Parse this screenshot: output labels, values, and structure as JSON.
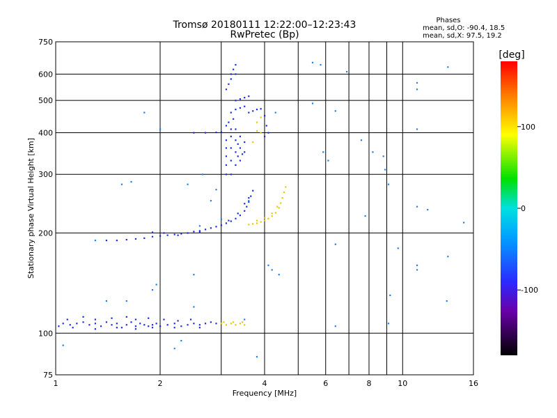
{
  "chart_data": {
    "type": "scatter",
    "title": "Tromsø 20180111 12:22:00–12:23:43",
    "subtitle": "RwPretec (Bp)",
    "xlabel": "Frequency [MHz]",
    "ylabel": "Stationary phase Virtual Height [km]",
    "x_scale": "log",
    "y_scale": "log",
    "xlim": [
      1,
      16
    ],
    "ylim": [
      75,
      750
    ],
    "x_ticks": [
      1,
      2,
      4,
      6,
      8,
      10,
      16
    ],
    "x_grid": [
      2,
      3,
      4,
      5,
      6,
      7,
      8,
      9,
      10
    ],
    "y_ticks": [
      75,
      100,
      200,
      300,
      400,
      500,
      600,
      750
    ],
    "grid": true,
    "phases_box": {
      "title": "Phases",
      "line_o": "mean, sd,O: -90.4, 18.5",
      "line_x": "mean, sd,X: 97.5, 19.2"
    },
    "colorbar": {
      "label": "[deg]",
      "range": [
        -180,
        180
      ],
      "ticks": [
        100,
        0,
        -100
      ]
    },
    "series": [
      {
        "style": "O-mode E layer",
        "points": [
          [
            1.02,
            105
          ],
          [
            1.05,
            107
          ],
          [
            1.1,
            106
          ],
          [
            1.15,
            107
          ],
          [
            1.2,
            108
          ],
          [
            1.25,
            106
          ],
          [
            1.3,
            107
          ],
          [
            1.35,
            105
          ],
          [
            1.4,
            108
          ],
          [
            1.45,
            106
          ],
          [
            1.5,
            107
          ],
          [
            1.55,
            104
          ],
          [
            1.6,
            106
          ],
          [
            1.65,
            108
          ],
          [
            1.7,
            105
          ],
          [
            1.75,
            107
          ],
          [
            1.8,
            106
          ],
          [
            1.85,
            105
          ],
          [
            1.9,
            106
          ],
          [
            1.95,
            107
          ],
          [
            2.0,
            105
          ],
          [
            2.1,
            106
          ],
          [
            2.2,
            107
          ],
          [
            2.3,
            105
          ],
          [
            2.4,
            106
          ],
          [
            2.5,
            107
          ],
          [
            2.6,
            106
          ],
          [
            2.7,
            107
          ],
          [
            2.8,
            108
          ],
          [
            2.9,
            107
          ],
          [
            1.08,
            110
          ],
          [
            1.2,
            112
          ],
          [
            1.3,
            110
          ],
          [
            1.45,
            111
          ],
          [
            1.6,
            112
          ],
          [
            1.7,
            110
          ],
          [
            1.85,
            111
          ],
          [
            2.05,
            110
          ],
          [
            2.25,
            109
          ],
          [
            2.45,
            110
          ],
          [
            1.12,
            104
          ],
          [
            1.3,
            103
          ],
          [
            1.5,
            104
          ],
          [
            1.7,
            103
          ],
          [
            1.9,
            104
          ],
          [
            2.2,
            104
          ],
          [
            2.6,
            104
          ]
        ],
        "phase": -100
      },
      {
        "style": "X-mode E layer",
        "points": [
          [
            3.0,
            107
          ],
          [
            3.1,
            106
          ],
          [
            3.2,
            107
          ],
          [
            3.3,
            106
          ],
          [
            3.4,
            107
          ],
          [
            3.5,
            106
          ],
          [
            3.05,
            108
          ],
          [
            3.25,
            108
          ],
          [
            3.45,
            108
          ]
        ],
        "phase": 95
      },
      {
        "style": "O-mode F1 trace",
        "points": [
          [
            1.4,
            190
          ],
          [
            1.5,
            190
          ],
          [
            1.6,
            191
          ],
          [
            1.7,
            192
          ],
          [
            1.8,
            193
          ],
          [
            1.9,
            195
          ],
          [
            2.0,
            196
          ],
          [
            2.1,
            197
          ],
          [
            2.2,
            198
          ],
          [
            2.3,
            199
          ],
          [
            2.4,
            200
          ],
          [
            2.5,
            202
          ],
          [
            2.6,
            203
          ],
          [
            2.7,
            205
          ],
          [
            2.8,
            207
          ],
          [
            2.9,
            209
          ],
          [
            3.0,
            211
          ],
          [
            3.1,
            214
          ],
          [
            3.2,
            217
          ],
          [
            3.3,
            221
          ],
          [
            3.4,
            226
          ],
          [
            3.5,
            233
          ],
          [
            3.55,
            240
          ],
          [
            3.6,
            248
          ],
          [
            3.65,
            258
          ],
          [
            3.7,
            268
          ],
          [
            1.9,
            201
          ],
          [
            2.05,
            200
          ],
          [
            2.25,
            197
          ],
          [
            2.6,
            201
          ],
          [
            3.15,
            218
          ],
          [
            3.35,
            229
          ],
          [
            3.5,
            245
          ],
          [
            3.6,
            255
          ]
        ],
        "phase": -100
      },
      {
        "style": "X-mode F1 trace",
        "points": [
          [
            3.6,
            212
          ],
          [
            3.7,
            213
          ],
          [
            3.8,
            214
          ],
          [
            3.9,
            216
          ],
          [
            4.0,
            218
          ],
          [
            4.1,
            221
          ],
          [
            4.2,
            225
          ],
          [
            4.3,
            230
          ],
          [
            4.4,
            238
          ],
          [
            4.45,
            246
          ],
          [
            4.5,
            255
          ],
          [
            4.55,
            265
          ],
          [
            4.6,
            275
          ],
          [
            3.8,
            218
          ],
          [
            4.0,
            222
          ],
          [
            4.2,
            229
          ],
          [
            4.35,
            240
          ]
        ],
        "phase": 95
      },
      {
        "style": "O-mode F2 trace",
        "points": [
          [
            2.5,
            400
          ],
          [
            2.7,
            400
          ],
          [
            2.9,
            401
          ],
          [
            3.0,
            402
          ],
          [
            3.1,
            300
          ],
          [
            3.1,
            320
          ],
          [
            3.1,
            340
          ],
          [
            3.1,
            360
          ],
          [
            3.1,
            380
          ],
          [
            3.1,
            420
          ],
          [
            3.15,
            430
          ],
          [
            3.2,
            300
          ],
          [
            3.2,
            330
          ],
          [
            3.2,
            360
          ],
          [
            3.2,
            390
          ],
          [
            3.2,
            410
          ],
          [
            3.25,
            440
          ],
          [
            3.3,
            320
          ],
          [
            3.3,
            350
          ],
          [
            3.3,
            380
          ],
          [
            3.3,
            410
          ],
          [
            3.35,
            340
          ],
          [
            3.35,
            370
          ],
          [
            3.4,
            330
          ],
          [
            3.4,
            360
          ],
          [
            3.4,
            390
          ],
          [
            3.45,
            345
          ],
          [
            3.5,
            350
          ],
          [
            3.5,
            375
          ],
          [
            3.2,
            460
          ],
          [
            3.3,
            470
          ],
          [
            3.4,
            475
          ],
          [
            3.5,
            480
          ],
          [
            3.6,
            460
          ],
          [
            3.7,
            465
          ],
          [
            3.8,
            470
          ],
          [
            3.9,
            472
          ],
          [
            3.3,
            500
          ],
          [
            3.4,
            505
          ],
          [
            3.5,
            510
          ],
          [
            3.6,
            515
          ],
          [
            3.1,
            540
          ],
          [
            3.2,
            580
          ],
          [
            3.2,
            600
          ],
          [
            3.25,
            620
          ],
          [
            3.3,
            640
          ],
          [
            3.15,
            560
          ],
          [
            3.3,
            600
          ],
          [
            4.0,
            450
          ],
          [
            4.05,
            420
          ],
          [
            4.1,
            400
          ],
          [
            4.0,
            390
          ]
        ],
        "phase": -100
      },
      {
        "style": "X-mode F2 trace",
        "points": [
          [
            3.8,
            430
          ],
          [
            3.9,
            445
          ],
          [
            3.8,
            405
          ],
          [
            3.7,
            375
          ],
          [
            3.9,
            400
          ]
        ],
        "phase": 95
      },
      {
        "style": "scattered echoes",
        "points": [
          [
            1.05,
            92
          ],
          [
            1.3,
            190
          ],
          [
            1.4,
            125
          ],
          [
            1.55,
            280
          ],
          [
            1.6,
            125
          ],
          [
            1.65,
            285
          ],
          [
            1.8,
            460
          ],
          [
            1.9,
            135
          ],
          [
            1.95,
            140
          ],
          [
            2.0,
            410
          ],
          [
            2.2,
            90
          ],
          [
            2.3,
            95
          ],
          [
            2.4,
            280
          ],
          [
            2.5,
            120
          ],
          [
            2.5,
            150
          ],
          [
            2.6,
            210
          ],
          [
            2.65,
            300
          ],
          [
            2.8,
            250
          ],
          [
            2.9,
            270
          ],
          [
            3.0,
            220
          ],
          [
            3.5,
            110
          ],
          [
            3.6,
            250
          ],
          [
            3.8,
            85
          ],
          [
            4.1,
            160
          ],
          [
            4.2,
            155
          ],
          [
            4.4,
            150
          ],
          [
            5.5,
            650
          ],
          [
            5.8,
            640
          ],
          [
            6.1,
            330
          ],
          [
            6.4,
            185
          ],
          [
            6.4,
            105
          ],
          [
            6.9,
            610
          ],
          [
            7.6,
            380
          ],
          [
            7.8,
            225
          ],
          [
            8.2,
            350
          ],
          [
            8.8,
            340
          ],
          [
            8.9,
            310
          ],
          [
            9.1,
            280
          ],
          [
            9.2,
            130
          ],
          [
            9.1,
            107
          ],
          [
            9.7,
            180
          ],
          [
            11.0,
            565
          ],
          [
            11.0,
            540
          ],
          [
            11.0,
            410
          ],
          [
            11.0,
            240
          ],
          [
            11.0,
            160
          ],
          [
            11.0,
            155
          ],
          [
            11.8,
            235
          ],
          [
            13.5,
            630
          ],
          [
            13.5,
            170
          ],
          [
            13.4,
            125
          ],
          [
            15.0,
            215
          ],
          [
            5.5,
            490
          ],
          [
            4.3,
            460
          ],
          [
            6.4,
            465
          ],
          [
            5.9,
            350
          ]
        ],
        "phase": -60
      }
    ]
  }
}
